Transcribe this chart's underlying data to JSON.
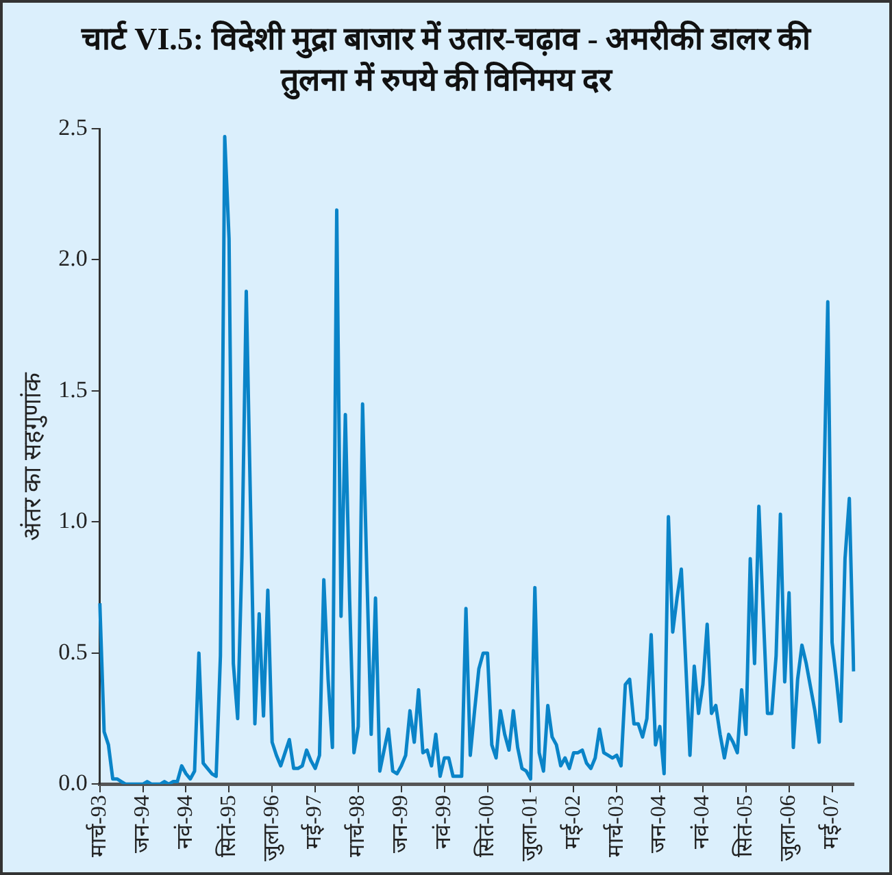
{
  "chart_data": {
    "type": "line",
    "title": "चार्ट VI.5: विदेशी मुद्रा बाजार में उतार-चढ़ाव - अमरीकी डालर की तुलना में रुपये की विनिमय दर",
    "ylabel": "अंतर का सहगुणांक",
    "categories": [
      "मार्च-93",
      null,
      null,
      null,
      null,
      null,
      null,
      null,
      null,
      null,
      "जन-94",
      null,
      null,
      null,
      null,
      null,
      null,
      null,
      null,
      null,
      "नवं-94",
      null,
      null,
      null,
      null,
      null,
      null,
      null,
      null,
      null,
      "सितं-95",
      null,
      null,
      null,
      null,
      null,
      null,
      null,
      null,
      null,
      "जुला-96",
      null,
      null,
      null,
      null,
      null,
      null,
      null,
      null,
      null,
      "मई-97",
      null,
      null,
      null,
      null,
      null,
      null,
      null,
      null,
      null,
      "मार्च-98",
      null,
      null,
      null,
      null,
      null,
      null,
      null,
      null,
      null,
      "जन-99",
      null,
      null,
      null,
      null,
      null,
      null,
      null,
      null,
      null,
      "नवं-99",
      null,
      null,
      null,
      null,
      null,
      null,
      null,
      null,
      null,
      "सितं-00",
      null,
      null,
      null,
      null,
      null,
      null,
      null,
      null,
      null,
      "जुला-01",
      null,
      null,
      null,
      null,
      null,
      null,
      null,
      null,
      null,
      "मई-02",
      null,
      null,
      null,
      null,
      null,
      null,
      null,
      null,
      null,
      "मार्च-03",
      null,
      null,
      null,
      null,
      null,
      null,
      null,
      null,
      null,
      "जन-04",
      null,
      null,
      null,
      null,
      null,
      null,
      null,
      null,
      null,
      "नवं-04",
      null,
      null,
      null,
      null,
      null,
      null,
      null,
      null,
      null,
      "सितं-05",
      null,
      null,
      null,
      null,
      null,
      null,
      null,
      null,
      null,
      "जुला-06",
      null,
      null,
      null,
      null,
      null,
      null,
      null,
      null,
      null,
      "मई-07",
      null,
      null,
      null,
      null,
      null
    ],
    "series": [
      {
        "color": "#0a84c8",
        "values": [
          0.69,
          0.2,
          0.15,
          0.02,
          0.02,
          0.01,
          0.0,
          0.0,
          0.0,
          0.0,
          0.0,
          0.01,
          0.0,
          0.0,
          0.0,
          0.01,
          0.0,
          0.01,
          0.01,
          0.07,
          0.04,
          0.02,
          0.05,
          0.5,
          0.08,
          0.06,
          0.04,
          0.03,
          0.49,
          2.47,
          2.08,
          0.46,
          0.25,
          0.87,
          1.88,
          1.05,
          0.23,
          0.65,
          0.26,
          0.74,
          0.16,
          0.11,
          0.07,
          0.12,
          0.17,
          0.06,
          0.06,
          0.07,
          0.13,
          0.09,
          0.06,
          0.11,
          0.78,
          0.4,
          0.14,
          2.19,
          0.64,
          1.41,
          0.7,
          0.12,
          0.22,
          1.45,
          0.8,
          0.19,
          0.71,
          0.05,
          0.13,
          0.21,
          0.05,
          0.04,
          0.07,
          0.11,
          0.28,
          0.16,
          0.36,
          0.12,
          0.13,
          0.07,
          0.19,
          0.03,
          0.1,
          0.1,
          0.03,
          0.03,
          0.03,
          0.67,
          0.11,
          0.28,
          0.44,
          0.5,
          0.5,
          0.15,
          0.1,
          0.28,
          0.19,
          0.13,
          0.28,
          0.14,
          0.06,
          0.05,
          0.02,
          0.75,
          0.12,
          0.05,
          0.3,
          0.18,
          0.15,
          0.07,
          0.1,
          0.06,
          0.12,
          0.12,
          0.13,
          0.08,
          0.06,
          0.1,
          0.21,
          0.12,
          0.11,
          0.1,
          0.11,
          0.07,
          0.38,
          0.4,
          0.23,
          0.23,
          0.18,
          0.25,
          0.57,
          0.15,
          0.22,
          0.04,
          1.02,
          0.58,
          0.71,
          0.82,
          0.47,
          0.11,
          0.45,
          0.27,
          0.38,
          0.61,
          0.27,
          0.3,
          0.19,
          0.1,
          0.19,
          0.16,
          0.12,
          0.36,
          0.19,
          0.86,
          0.46,
          1.06,
          0.66,
          0.27,
          0.27,
          0.49,
          1.03,
          0.39,
          0.73,
          0.14,
          0.4,
          0.53,
          0.46,
          0.37,
          0.28,
          0.16,
          1.05,
          1.84,
          0.54,
          0.4,
          0.24,
          0.86,
          1.09,
          0.43
        ]
      }
    ],
    "ylim": [
      0,
      2.5
    ],
    "yticks": [
      {
        "value": 0,
        "label": "0.0"
      },
      {
        "value": 0.5,
        "label": "0.5"
      },
      {
        "value": 1,
        "label": "1.0"
      },
      {
        "value": 1.5,
        "label": "1.5"
      },
      {
        "value": 2,
        "label": "2.0"
      },
      {
        "value": 2.5,
        "label": "2.5"
      }
    ],
    "grid": false,
    "legend": false,
    "marker": "none",
    "line_style": "solid"
  }
}
